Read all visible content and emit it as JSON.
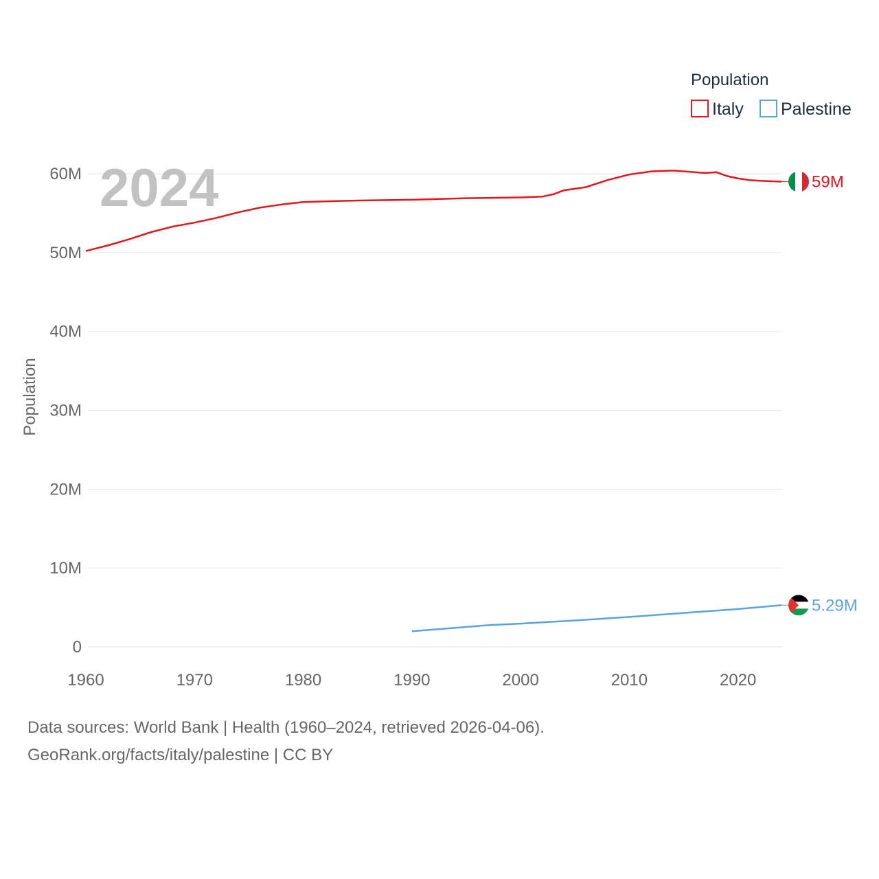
{
  "chart_data": {
    "type": "line",
    "title": "",
    "year_label": "2024",
    "xlabel": "",
    "ylabel": "Population",
    "xlim": [
      1960,
      2024
    ],
    "ylim": [
      0,
      60000000
    ],
    "grid": true,
    "x_ticks": [
      1960,
      1970,
      1980,
      1990,
      2000,
      2010,
      2020
    ],
    "x_tick_labels": [
      "1960",
      "1970",
      "1980",
      "1990",
      "2000",
      "2010",
      "2020"
    ],
    "y_ticks": [
      0,
      10000000,
      20000000,
      30000000,
      40000000,
      50000000,
      60000000
    ],
    "y_tick_labels": [
      "0",
      "10M",
      "20M",
      "30M",
      "40M",
      "50M",
      "60M"
    ],
    "legend": {
      "title": "Population",
      "position": "top-right",
      "entries": [
        {
          "name": "Italy",
          "color": "#e8141b"
        },
        {
          "name": "Palestine",
          "color": "#5ba3e0"
        }
      ]
    },
    "series": [
      {
        "name": "Italy",
        "color": "#e8141b",
        "end_label": "59M",
        "flag": "italy-flag",
        "points": [
          [
            1960,
            50200000
          ],
          [
            1962,
            50900000
          ],
          [
            1964,
            51700000
          ],
          [
            1966,
            52600000
          ],
          [
            1968,
            53300000
          ],
          [
            1970,
            53800000
          ],
          [
            1972,
            54400000
          ],
          [
            1974,
            55100000
          ],
          [
            1976,
            55700000
          ],
          [
            1978,
            56100000
          ],
          [
            1980,
            56400000
          ],
          [
            1982,
            56500000
          ],
          [
            1985,
            56600000
          ],
          [
            1990,
            56700000
          ],
          [
            1995,
            56900000
          ],
          [
            2000,
            57000000
          ],
          [
            2002,
            57100000
          ],
          [
            2003,
            57400000
          ],
          [
            2004,
            57900000
          ],
          [
            2006,
            58300000
          ],
          [
            2008,
            59200000
          ],
          [
            2010,
            59900000
          ],
          [
            2012,
            60300000
          ],
          [
            2014,
            60400000
          ],
          [
            2017,
            60100000
          ],
          [
            2018,
            60200000
          ],
          [
            2019,
            59700000
          ],
          [
            2020,
            59400000
          ],
          [
            2021,
            59200000
          ],
          [
            2022,
            59100000
          ],
          [
            2024,
            59000000
          ]
        ]
      },
      {
        "name": "Palestine",
        "color": "#5ba3e0",
        "end_label": "5.29M",
        "flag": "palestine-flag",
        "points": [
          [
            1990,
            1980000
          ],
          [
            1997,
            2750000
          ],
          [
            2000,
            2950000
          ],
          [
            2005,
            3350000
          ],
          [
            2010,
            3800000
          ],
          [
            2015,
            4300000
          ],
          [
            2020,
            4800000
          ],
          [
            2024,
            5290000
          ]
        ]
      }
    ]
  },
  "footer": {
    "line1": "Data sources: World Bank | Health (1960–2024, retrieved 2026-04-06).",
    "line2": "GeoRank.org/facts/italy/palestine | CC BY"
  }
}
